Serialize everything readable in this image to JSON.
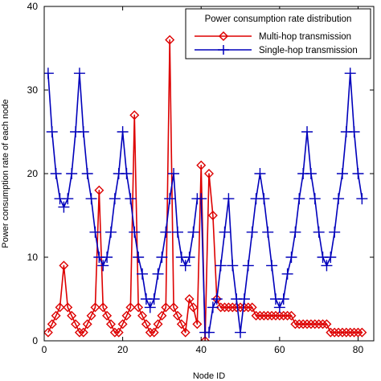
{
  "chart_data": {
    "type": "line",
    "xlabel": "Node ID",
    "ylabel": "Power consumption rate of each node",
    "xlim": [
      0,
      84
    ],
    "ylim": [
      0,
      40
    ],
    "xticks": [
      0,
      20,
      40,
      60,
      80
    ],
    "yticks": [
      0,
      10,
      20,
      30,
      40
    ],
    "grid": false,
    "legend": {
      "title": "Power consumption rate distribution",
      "placement": "top-right"
    },
    "series": [
      {
        "name": "Multi-hop transmission",
        "color": "#dd0000",
        "marker": "diamond",
        "x": [
          1,
          2,
          3,
          4,
          5,
          6,
          7,
          8,
          9,
          10,
          11,
          12,
          13,
          14,
          15,
          16,
          17,
          18,
          19,
          20,
          21,
          22,
          23,
          24,
          25,
          26,
          27,
          28,
          29,
          30,
          31,
          32,
          33,
          34,
          35,
          36,
          37,
          38,
          39,
          40,
          41,
          42,
          43,
          44,
          45,
          46,
          47,
          48,
          49,
          50,
          51,
          52,
          53,
          54,
          55,
          56,
          57,
          58,
          59,
          60,
          61,
          62,
          63,
          64,
          65,
          66,
          67,
          68,
          69,
          70,
          71,
          72,
          73,
          74,
          75,
          76,
          77,
          78,
          79,
          80,
          81
        ],
        "y": [
          1,
          2,
          3,
          4,
          9,
          4,
          3,
          2,
          1,
          1,
          2,
          3,
          4,
          18,
          4,
          3,
          2,
          1,
          1,
          2,
          3,
          4,
          27,
          4,
          3,
          2,
          1,
          1,
          2,
          3,
          4,
          36,
          4,
          3,
          2,
          1,
          5,
          4,
          2,
          21,
          0,
          20,
          15,
          5,
          4,
          4,
          4,
          4,
          4,
          4,
          4,
          4,
          4,
          3,
          3,
          3,
          3,
          3,
          3,
          3,
          3,
          3,
          3,
          2,
          2,
          2,
          2,
          2,
          2,
          2,
          2,
          2,
          1,
          1,
          1,
          1,
          1,
          1,
          1,
          1,
          1
        ]
      },
      {
        "name": "Single-hop transmission",
        "color": "#0000bb",
        "marker": "plus",
        "x": [
          1,
          2,
          3,
          4,
          5,
          6,
          7,
          8,
          9,
          10,
          11,
          12,
          13,
          14,
          15,
          16,
          17,
          18,
          19,
          20,
          21,
          22,
          23,
          24,
          25,
          26,
          27,
          28,
          29,
          30,
          31,
          32,
          33,
          34,
          35,
          36,
          37,
          38,
          39,
          40,
          41,
          42,
          43,
          44,
          45,
          46,
          47,
          48,
          49,
          50,
          51,
          52,
          53,
          54,
          55,
          56,
          57,
          58,
          59,
          60,
          61,
          62,
          63,
          64,
          65,
          66,
          67,
          68,
          69,
          70,
          71,
          72,
          73,
          74,
          75,
          76,
          77,
          78,
          79,
          80,
          81
        ],
        "y": [
          32,
          25,
          20,
          17,
          16,
          17,
          20,
          25,
          32,
          25,
          20,
          17,
          13,
          10,
          9,
          10,
          13,
          17,
          20,
          25,
          20,
          17,
          13,
          10,
          8,
          5,
          4,
          5,
          8,
          10,
          13,
          17,
          20,
          13,
          10,
          9,
          10,
          13,
          17,
          17,
          1,
          1,
          4,
          5,
          9,
          13,
          17,
          9,
          5,
          1,
          5,
          9,
          13,
          17,
          20,
          17,
          13,
          9,
          5,
          4,
          5,
          8,
          10,
          13,
          17,
          20,
          25,
          20,
          17,
          13,
          10,
          9,
          10,
          13,
          17,
          20,
          25,
          32,
          25,
          20,
          17
        ]
      }
    ]
  }
}
